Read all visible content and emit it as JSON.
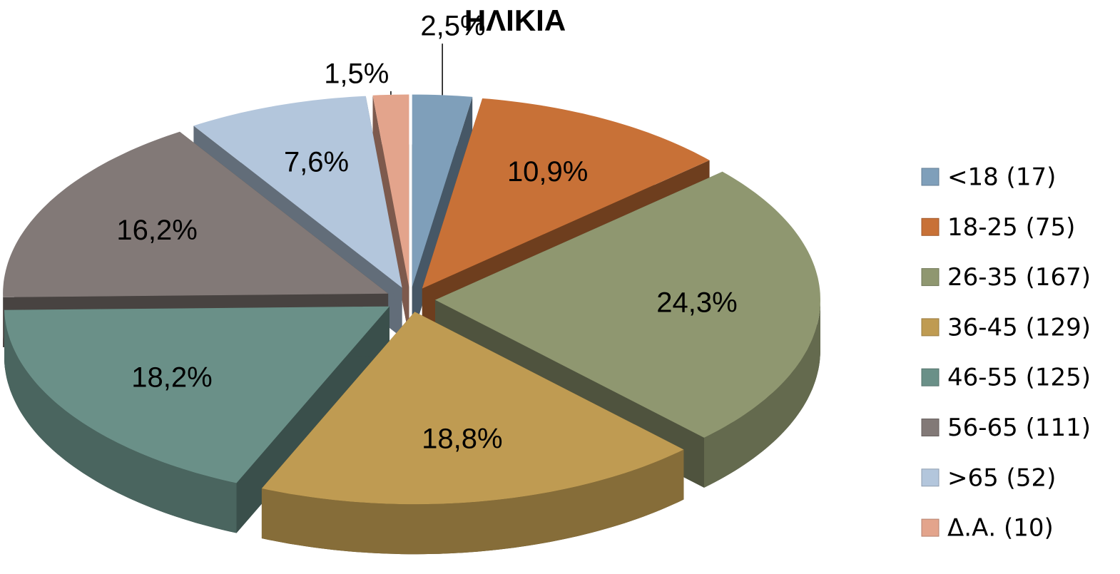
{
  "chart_data": {
    "type": "pie3d",
    "title": "ΗΛΙΚΙΑ",
    "categories": [
      "<18 (17)",
      "18-25 (75)",
      "26-35 (167)",
      "36-45 (129)",
      "46-55 (125)",
      "56-65 (111)",
      ">65 (52)",
      "Δ.Α. (10)"
    ],
    "values": [
      2.5,
      10.9,
      24.3,
      18.8,
      18.2,
      16.2,
      7.6,
      1.5
    ],
    "value_labels": [
      "2,5%",
      "10,9%",
      "24,3%",
      "18,8%",
      "18,2%",
      "16,2%",
      "7,6%",
      "1,5%"
    ],
    "colors": [
      "#7f9fba",
      "#c87137",
      "#8f9770",
      "#bf9b52",
      "#6a9088",
      "#827977",
      "#b3c6dc",
      "#e3a48c"
    ],
    "legend": "right"
  }
}
